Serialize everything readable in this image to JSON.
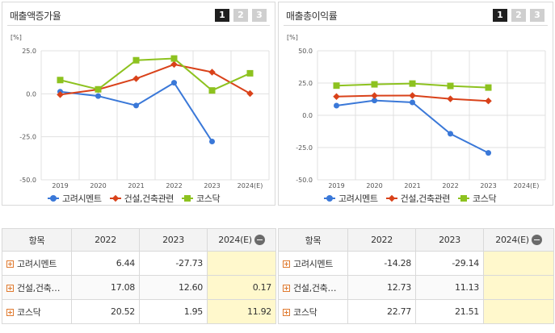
{
  "left_panel": {
    "title": "매출액증가율",
    "pages": [
      "1",
      "2",
      "3"
    ],
    "active_page": 0
  },
  "right_panel": {
    "title": "매출총이익률",
    "pages": [
      "1",
      "2",
      "3"
    ],
    "active_page": 0
  },
  "colors": {
    "고려시멘트": "#3a78d8",
    "건설,건축관련": "#d9421a",
    "코스닥": "#8dc21f"
  },
  "chart_data": [
    {
      "type": "line",
      "unit_label": "[%]",
      "categories": [
        "2019",
        "2020",
        "2021",
        "2022",
        "2023",
        "2024(E)"
      ],
      "yticks": [
        "25.0",
        "0.0",
        "-25.0",
        "-50.0"
      ],
      "ylim": [
        -50,
        25
      ],
      "grid": true,
      "legend_position": "bottom",
      "series": [
        {
          "name": "고려시멘트",
          "marker": "circle",
          "values": [
            1.2,
            -1.3,
            -6.8,
            6.44,
            -27.73,
            null
          ]
        },
        {
          "name": "건설,건축관련",
          "marker": "diamond",
          "values": [
            -0.5,
            2.5,
            8.8,
            17.08,
            12.6,
            0.17
          ]
        },
        {
          "name": "코스닥",
          "marker": "square",
          "values": [
            8.0,
            2.6,
            19.5,
            20.52,
            1.95,
            11.92
          ]
        }
      ]
    },
    {
      "type": "line",
      "unit_label": "[%]",
      "categories": [
        "2019",
        "2020",
        "2021",
        "2022",
        "2023",
        "2024(E)"
      ],
      "yticks": [
        "50.0",
        "25.0",
        "0.0",
        "-25.0",
        "-50.0"
      ],
      "ylim": [
        -50,
        50
      ],
      "grid": true,
      "legend_position": "bottom",
      "series": [
        {
          "name": "고려시멘트",
          "marker": "circle",
          "values": [
            7.5,
            11.5,
            10.0,
            -14.28,
            -29.14,
            null
          ]
        },
        {
          "name": "건설,건축관련",
          "marker": "diamond",
          "values": [
            14.5,
            15.2,
            15.3,
            12.73,
            11.13,
            null
          ]
        },
        {
          "name": "코스닥",
          "marker": "square",
          "values": [
            23.0,
            24.0,
            24.6,
            22.77,
            21.51,
            null
          ]
        }
      ]
    }
  ],
  "legend": [
    {
      "label": "고려시멘트",
      "marker": "circle"
    },
    {
      "label": "건설,건축관련",
      "marker": "diamond"
    },
    {
      "label": "코스닥",
      "marker": "square"
    }
  ],
  "left_table": {
    "headers": [
      "항목",
      "2022",
      "2023",
      "2024(E)"
    ],
    "rows": [
      {
        "name": "고려시멘트",
        "v2022": "6.44",
        "v2023": "-27.73",
        "v2024": ""
      },
      {
        "name": "건설,건축…",
        "v2022": "17.08",
        "v2023": "12.60",
        "v2024": "0.17"
      },
      {
        "name": "코스닥",
        "v2022": "20.52",
        "v2023": "1.95",
        "v2024": "11.92"
      }
    ]
  },
  "right_table": {
    "headers": [
      "항목",
      "2022",
      "2023",
      "2024(E)"
    ],
    "rows": [
      {
        "name": "고려시멘트",
        "v2022": "-14.28",
        "v2023": "-29.14",
        "v2024": ""
      },
      {
        "name": "건설,건축…",
        "v2022": "12.73",
        "v2023": "11.13",
        "v2024": ""
      },
      {
        "name": "코스닥",
        "v2022": "22.77",
        "v2023": "21.51",
        "v2024": ""
      }
    ]
  }
}
